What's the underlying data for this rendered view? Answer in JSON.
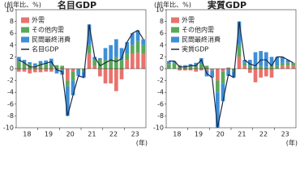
{
  "chart_data": [
    {
      "type": "bar",
      "title": "名目GDP",
      "y_label": "(前年比、%)",
      "x_label": "(年)",
      "categories": [
        null,
        "18",
        null,
        null,
        null,
        "19",
        null,
        null,
        null,
        "20",
        null,
        null,
        null,
        "21",
        null,
        null,
        null,
        "22",
        null,
        null,
        null,
        "23",
        null,
        null
      ],
      "ylim": [
        -10,
        10
      ],
      "yticks": [
        -10,
        -8,
        -6,
        -4,
        -2,
        0,
        2,
        4,
        6,
        8,
        10
      ],
      "series": [
        {
          "name": "外需",
          "color": "#e8736c",
          "values": [
            -0.5,
            -0.5,
            -0.8,
            -0.6,
            -0.6,
            -0.5,
            -0.5,
            0,
            -0.2,
            -2.0,
            -0.5,
            0,
            0,
            2.5,
            0.5,
            -1.3,
            -2.5,
            -2.5,
            -3.8,
            -1.8,
            1.5,
            2.5,
            2.7,
            2.5
          ]
        },
        {
          "name": "その他内需",
          "color": "#5aa85a",
          "values": [
            1.2,
            1.0,
            0.8,
            0.5,
            0.8,
            0.8,
            0.7,
            0.6,
            0.5,
            -1.0,
            -1.5,
            -0.2,
            -0.5,
            1.5,
            1.0,
            1.5,
            1.5,
            1.5,
            2.0,
            1.5,
            1.0,
            1.5,
            2.0,
            1.5
          ]
        },
        {
          "name": "民間最終消費",
          "color": "#3d8fd6",
          "values": [
            0.8,
            0.5,
            0.3,
            0.4,
            0.5,
            0.6,
            1.0,
            -0.8,
            -0.8,
            -5.0,
            -2.5,
            -1.0,
            -1.0,
            3.5,
            0.5,
            0.3,
            2.0,
            2.5,
            3.0,
            2.0,
            2.0,
            2.0,
            1.8,
            1.0
          ]
        },
        {
          "name": "名目GDP",
          "color": "#1f2a44",
          "type": "line",
          "values": [
            1.5,
            1.0,
            0.3,
            0.3,
            0.7,
            0.9,
            1.2,
            -0.2,
            -0.5,
            -8.0,
            -4.5,
            -1.2,
            -1.5,
            7.5,
            2.0,
            0.5,
            1.0,
            1.5,
            1.2,
            1.7,
            4.5,
            6.0,
            6.5,
            5.0
          ]
        }
      ]
    },
    {
      "type": "bar",
      "title": "実質GDP",
      "y_label": "(前年比、%)",
      "x_label": "(年)",
      "categories": [
        null,
        "18",
        null,
        null,
        null,
        "19",
        null,
        null,
        null,
        "20",
        null,
        null,
        null,
        "21",
        null,
        null,
        null,
        "22",
        null,
        null,
        null,
        "23",
        null,
        null
      ],
      "ylim": [
        -10,
        10
      ],
      "yticks": [
        -10,
        -8,
        -6,
        -4,
        -2,
        0,
        2,
        4,
        6,
        8,
        10
      ],
      "series": [
        {
          "name": "外需",
          "color": "#e8736c",
          "values": [
            0,
            0,
            -0.3,
            -0.3,
            -0.3,
            -0.5,
            -0.3,
            -0.3,
            -0.3,
            -2.0,
            -0.5,
            0.2,
            0,
            2.0,
            0.5,
            -0.7,
            -2.3,
            -1.5,
            -1.3,
            -1.5,
            0,
            0.5,
            0.5,
            0.5
          ]
        },
        {
          "name": "その他内需",
          "color": "#5aa85a",
          "values": [
            0.8,
            1.0,
            0.5,
            0.3,
            0.5,
            0.5,
            0.8,
            0.5,
            0,
            -2.0,
            -2.0,
            -0.2,
            -0.5,
            2.0,
            0.5,
            0.5,
            0.3,
            0.5,
            0.3,
            0.5,
            0.5,
            0.5,
            0.5,
            0.5
          ]
        },
        {
          "name": "民間最終消費",
          "color": "#3d8fd6",
          "values": [
            0.5,
            0.3,
            0.1,
            0.3,
            0.3,
            0.5,
            1.0,
            -1.0,
            -1.2,
            -6.0,
            -3.0,
            -1.0,
            -1.0,
            4.0,
            0.5,
            1.0,
            2.5,
            2.5,
            2.5,
            1.5,
            1.5,
            1.0,
            0.5,
            0.0
          ]
        },
        {
          "name": "実質GDP",
          "color": "#1f2a44",
          "type": "line",
          "values": [
            1.3,
            1.3,
            0.3,
            0.3,
            0.5,
            0.5,
            1.5,
            -0.8,
            -1.5,
            -10.0,
            -5.5,
            -1.0,
            -1.5,
            8.0,
            1.5,
            0.8,
            0.5,
            1.5,
            1.5,
            0.5,
            2.0,
            2.0,
            1.5,
            1.0
          ]
        }
      ]
    }
  ]
}
